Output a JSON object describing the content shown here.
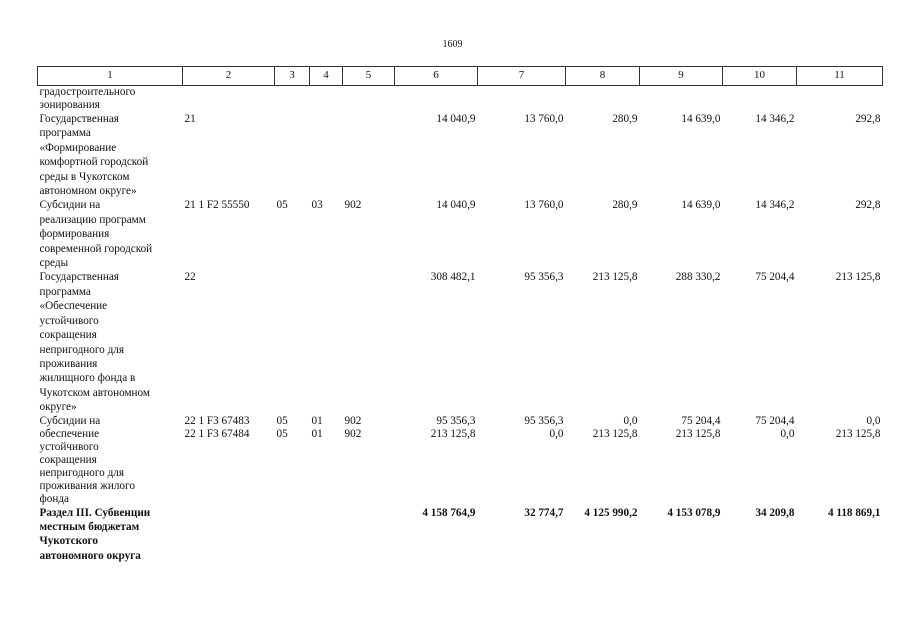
{
  "page_number": "1609",
  "header": [
    "1",
    "2",
    "3",
    "4",
    "5",
    "6",
    "7",
    "8",
    "9",
    "10",
    "11"
  ],
  "rows": [
    {
      "name": [
        "градостроительного",
        "зонирования"
      ],
      "code": [],
      "c3": [],
      "c4": [],
      "c5": [],
      "v6": [],
      "v7": [],
      "v8": [],
      "v9": [],
      "v10": [],
      "v11": [],
      "bold": false,
      "tight": true
    },
    {
      "name": [
        "Государственная",
        "программа",
        "«Формирование",
        "комфортной городской",
        "среды в Чукотском",
        "автономном округе»"
      ],
      "code": [
        "21"
      ],
      "c3": [],
      "c4": [],
      "c5": [],
      "v6": [
        "14 040,9"
      ],
      "v7": [
        "13 760,0"
      ],
      "v8": [
        "280,9"
      ],
      "v9": [
        "14 639,0"
      ],
      "v10": [
        "14 346,2"
      ],
      "v11": [
        "292,8"
      ],
      "bold": false,
      "tight": false
    },
    {
      "name": [
        "Субсидии на",
        "реализацию программ",
        "формирования",
        "современной городской",
        "среды"
      ],
      "code": [
        "21 1 F2 55550"
      ],
      "c3": [
        "05"
      ],
      "c4": [
        "03"
      ],
      "c5": [
        "902"
      ],
      "v6": [
        "14 040,9"
      ],
      "v7": [
        "13 760,0"
      ],
      "v8": [
        "280,9"
      ],
      "v9": [
        "14 639,0"
      ],
      "v10": [
        "14 346,2"
      ],
      "v11": [
        "292,8"
      ],
      "bold": false,
      "tight": false
    },
    {
      "name": [
        "Государственная",
        "программа",
        "«Обеспечение",
        "устойчивого",
        "сокращения",
        "непригодного для",
        "проживания",
        "жилищного фонда в",
        "Чукотском автономном",
        "округе»"
      ],
      "code": [
        "22"
      ],
      "c3": [],
      "c4": [],
      "c5": [],
      "v6": [
        "308 482,1"
      ],
      "v7": [
        "95 356,3"
      ],
      "v8": [
        "213 125,8"
      ],
      "v9": [
        "288 330,2"
      ],
      "v10": [
        "75 204,4"
      ],
      "v11": [
        "213 125,8"
      ],
      "bold": false,
      "tight": false
    },
    {
      "name": [
        "Субсидии на",
        "обеспечение",
        "устойчивого",
        "сокращения",
        "непригодного для",
        "проживания жилого",
        "фонда"
      ],
      "code": [
        "22 1 F3 67483",
        "22 1 F3 67484"
      ],
      "c3": [
        "05",
        "05"
      ],
      "c4": [
        "01",
        "01"
      ],
      "c5": [
        "902",
        "902"
      ],
      "v6": [
        "95 356,3",
        "213 125,8"
      ],
      "v7": [
        "95 356,3",
        "0,0"
      ],
      "v8": [
        "0,0",
        "213 125,8"
      ],
      "v9": [
        "75 204,4",
        "213 125,8"
      ],
      "v10": [
        "75 204,4",
        "0,0"
      ],
      "v11": [
        "0,0",
        "213 125,8"
      ],
      "bold": false,
      "tight": true
    },
    {
      "name": [
        "Раздел III. Субвенции",
        "местным бюджетам",
        "Чукотского",
        "автономного округа"
      ],
      "code": [],
      "c3": [],
      "c4": [],
      "c5": [],
      "v6": [
        "4 158 764,9"
      ],
      "v7": [
        "32 774,7"
      ],
      "v8": [
        "4 125 990,2"
      ],
      "v9": [
        "4 153 078,9"
      ],
      "v10": [
        "34 209,8"
      ],
      "v11": [
        "4 118 869,1"
      ],
      "bold": true,
      "tight": false
    }
  ]
}
